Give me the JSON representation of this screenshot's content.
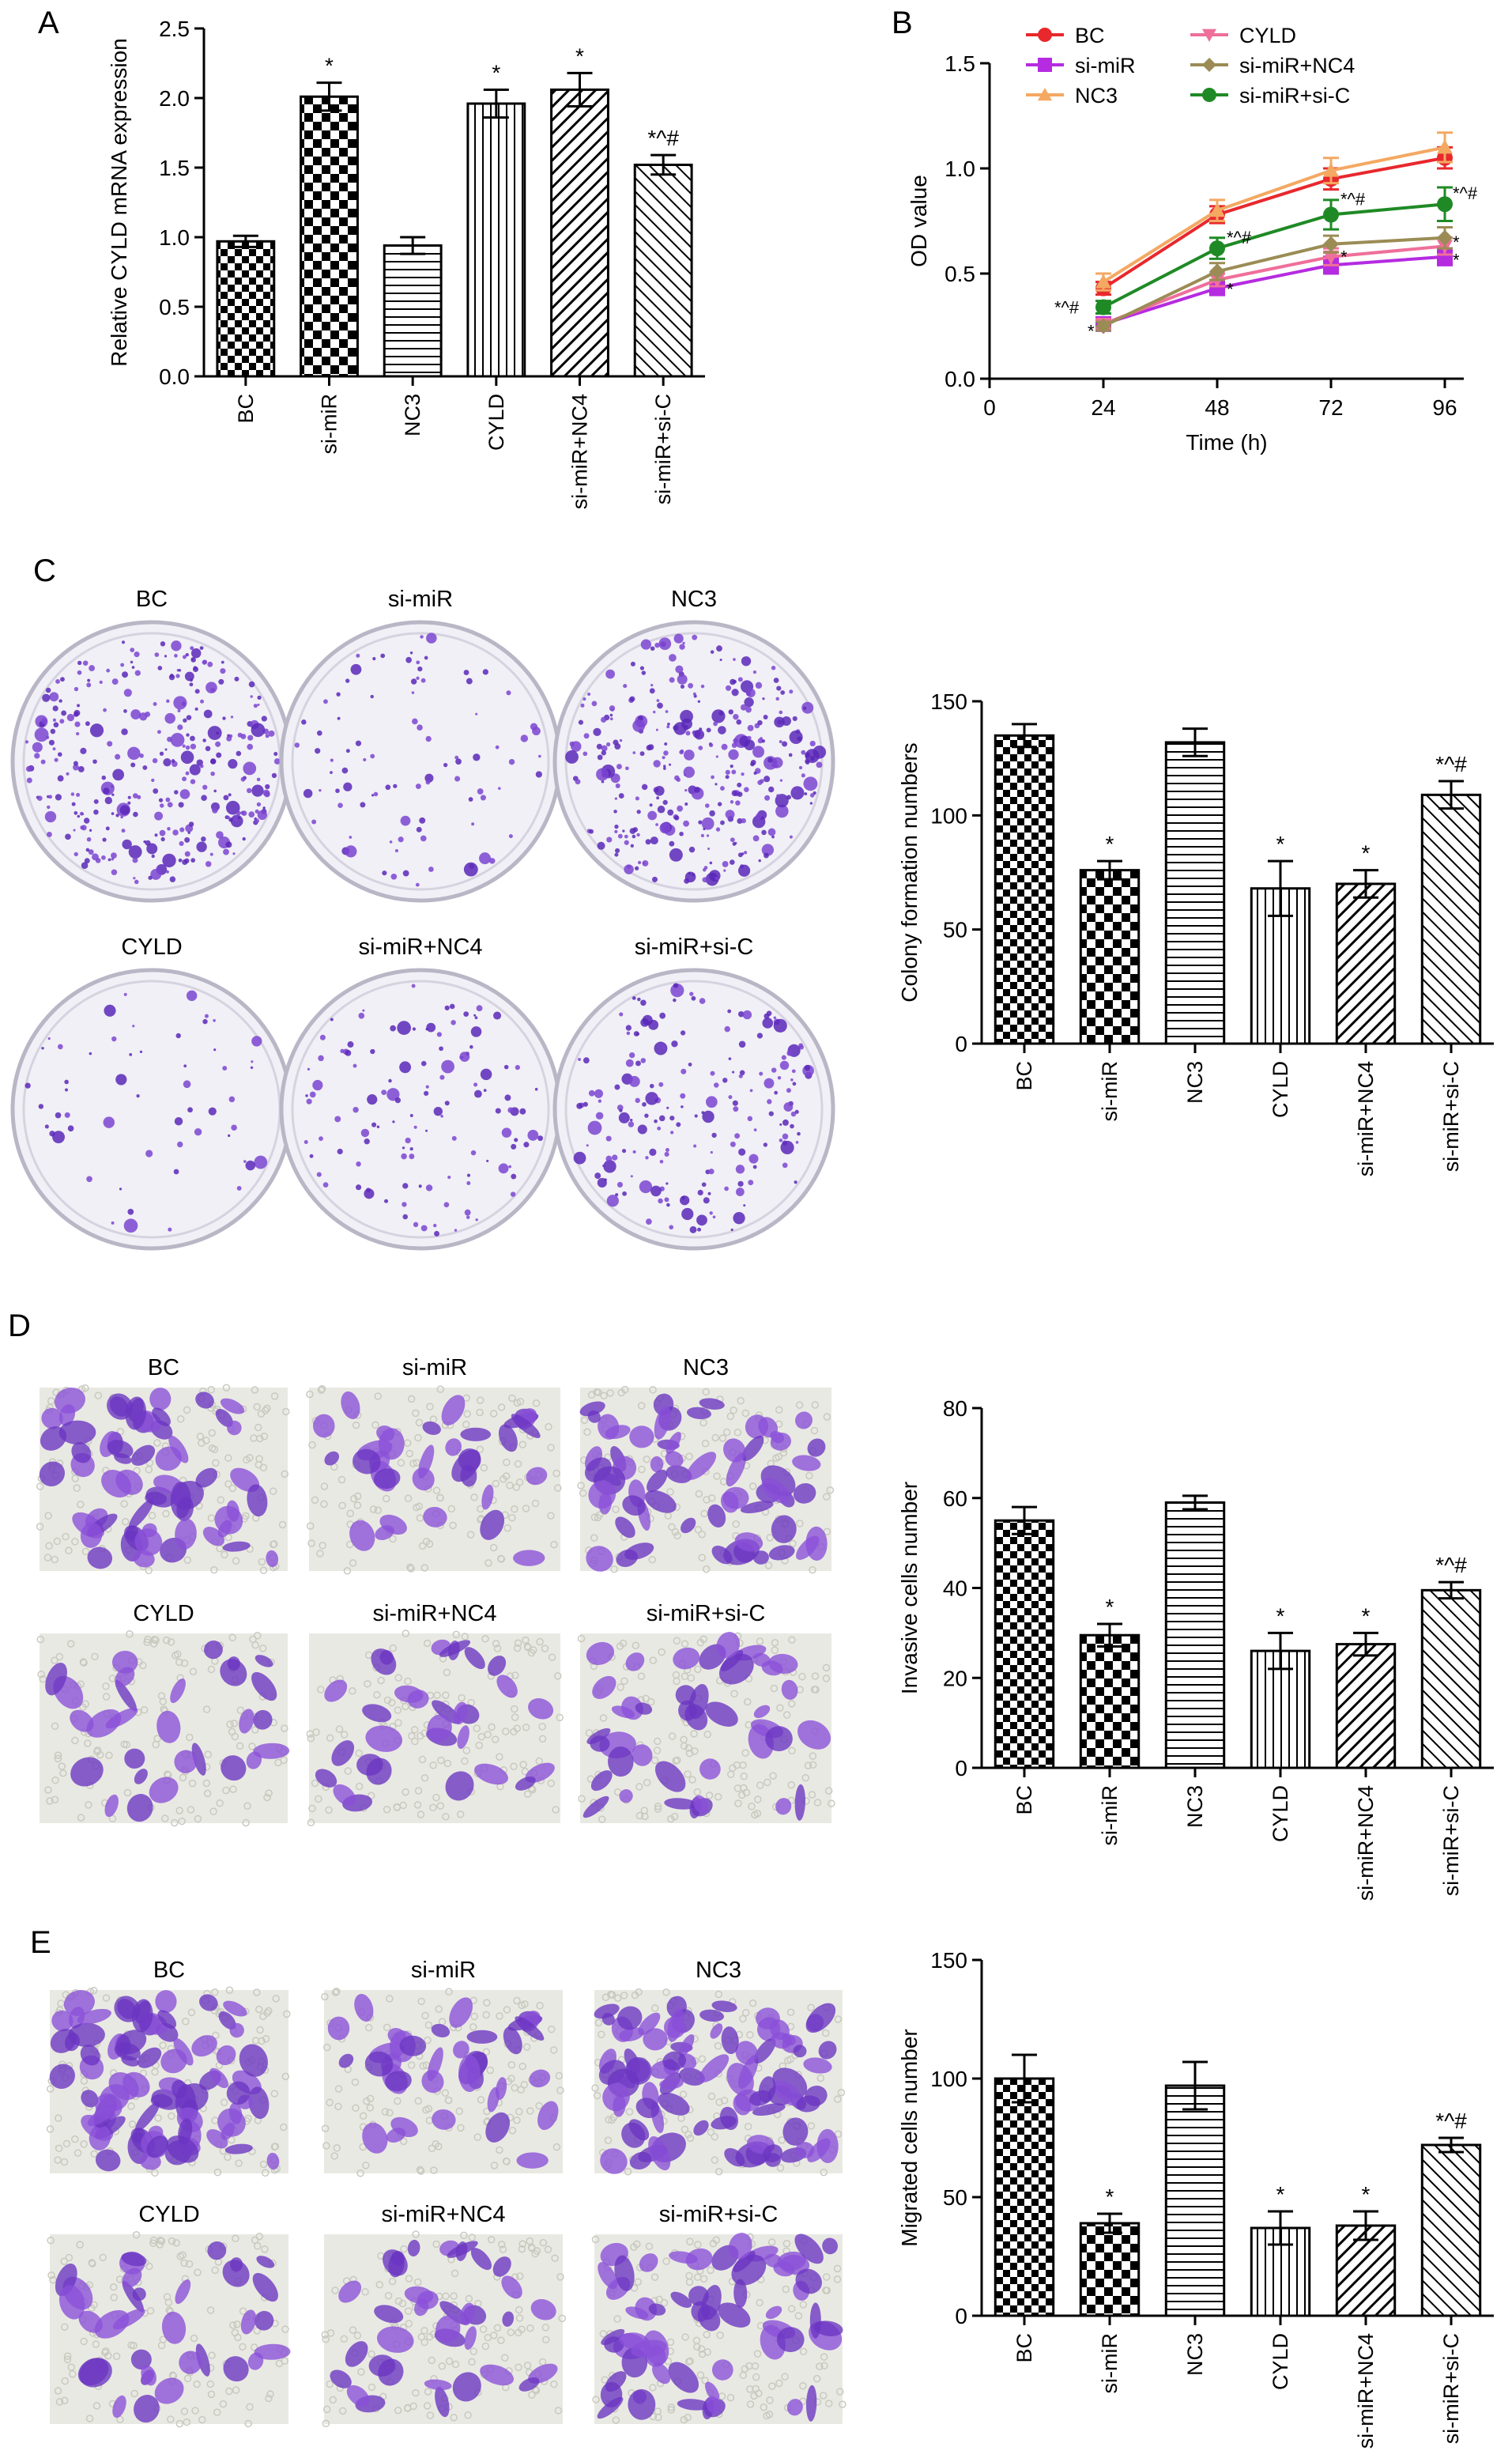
{
  "chart_data": [
    {
      "panel": "A",
      "type": "bar",
      "categories": [
        "BC",
        "si-miR",
        "NC3",
        "CYLD",
        "si-miR+NC4",
        "si-miR+si-C"
      ],
      "values": [
        0.97,
        2.01,
        0.94,
        1.96,
        2.06,
        1.52
      ],
      "errors": [
        0.04,
        0.1,
        0.06,
        0.1,
        0.12,
        0.07
      ],
      "significance": [
        "",
        "*",
        "",
        "*",
        "*",
        "*^#"
      ],
      "xlabel": "",
      "ylabel": "Relative CYLD mRNA expression",
      "ylim": [
        0,
        2.5
      ],
      "yticks": [
        "0.0",
        "0.5",
        "1.0",
        "1.5",
        "2.0",
        "2.5"
      ],
      "grid": false,
      "patterns": [
        "checker",
        "checker-bold",
        "horizontal",
        "vertical",
        "diagonal",
        "diagonal-reverse"
      ]
    },
    {
      "panel": "B",
      "type": "line",
      "x": [
        24,
        48,
        72,
        96
      ],
      "xlabel": "Time (h)",
      "ylabel": "OD value",
      "xlim": [
        0,
        100
      ],
      "ylim": [
        0,
        1.5
      ],
      "xticks": [
        "0",
        "24",
        "48",
        "72",
        "96"
      ],
      "yticks": [
        "0.0",
        "0.5",
        "1.0",
        "1.5"
      ],
      "legend_position": "top",
      "series": [
        {
          "name": "BC",
          "color": "#e8282d",
          "marker": "circle",
          "values": [
            0.43,
            0.78,
            0.95,
            1.05
          ],
          "errors": [
            0.03,
            0.04,
            0.05,
            0.05
          ]
        },
        {
          "name": "si-miR",
          "color": "#b52be0",
          "marker": "square",
          "values": [
            0.26,
            0.43,
            0.54,
            0.58
          ],
          "errors": [
            0.02,
            0.03,
            0.04,
            0.04
          ]
        },
        {
          "name": "NC3",
          "color": "#f4a862",
          "marker": "triangle-up",
          "values": [
            0.46,
            0.8,
            0.99,
            1.1
          ],
          "errors": [
            0.04,
            0.05,
            0.06,
            0.07
          ]
        },
        {
          "name": "CYLD",
          "color": "#ef6f9a",
          "marker": "triangle-down",
          "values": [
            0.26,
            0.47,
            0.58,
            0.63
          ],
          "errors": [
            0.02,
            0.03,
            0.04,
            0.04
          ]
        },
        {
          "name": "si-miR+NC4",
          "color": "#9b8c55",
          "marker": "diamond",
          "values": [
            0.25,
            0.51,
            0.64,
            0.67
          ],
          "errors": [
            0.02,
            0.04,
            0.04,
            0.05
          ]
        },
        {
          "name": "si-miR+si-C",
          "color": "#1f8a25",
          "marker": "circle",
          "values": [
            0.34,
            0.62,
            0.78,
            0.83
          ],
          "errors": [
            0.03,
            0.05,
            0.07,
            0.08
          ]
        }
      ],
      "annotations": [
        "*^#",
        "*",
        "*^#",
        "*",
        "*^#",
        "*",
        "*^#",
        "*",
        "*"
      ]
    },
    {
      "panel": "C",
      "type": "bar",
      "categories": [
        "BC",
        "si-miR",
        "NC3",
        "CYLD",
        "si-miR+NC4",
        "si-miR+si-C"
      ],
      "values": [
        135,
        76,
        132,
        68,
        70,
        109
      ],
      "errors": [
        5,
        4,
        6,
        12,
        6,
        6
      ],
      "significance": [
        "",
        "*",
        "",
        "*",
        "*",
        "*^#"
      ],
      "xlabel": "",
      "ylabel": "Colony formation numbers",
      "ylim": [
        0,
        150
      ],
      "yticks": [
        "0",
        "50",
        "100",
        "150"
      ],
      "grid": false
    },
    {
      "panel": "D",
      "type": "bar",
      "categories": [
        "BC",
        "si-miR",
        "NC3",
        "CYLD",
        "si-miR+NC4",
        "si-miR+si-C"
      ],
      "values": [
        55,
        29.5,
        59,
        26,
        27.5,
        39.5
      ],
      "errors": [
        3,
        2.5,
        1.5,
        4,
        2.5,
        1.8
      ],
      "significance": [
        "",
        "*",
        "",
        "*",
        "*",
        "*^#"
      ],
      "xlabel": "",
      "ylabel": "Invasive cells number",
      "ylim": [
        0,
        80
      ],
      "yticks": [
        "0",
        "20",
        "40",
        "60",
        "80"
      ],
      "grid": false
    },
    {
      "panel": "E",
      "type": "bar",
      "categories": [
        "BC",
        "si-miR",
        "NC3",
        "CYLD",
        "si-miR+NC4",
        "si-miR+si-C"
      ],
      "values": [
        100,
        39,
        97,
        37,
        38,
        72
      ],
      "errors": [
        10,
        4,
        10,
        7,
        6,
        3
      ],
      "significance": [
        "",
        "*",
        "",
        "*",
        "*",
        "*^#"
      ],
      "xlabel": "",
      "ylabel": "Migrated cells number",
      "ylim": [
        0,
        150
      ],
      "yticks": [
        "0",
        "50",
        "100",
        "150"
      ],
      "grid": false
    }
  ],
  "panel_letters": [
    "A",
    "B",
    "C",
    "D",
    "E"
  ],
  "image_panels": {
    "C": {
      "labels": [
        "BC",
        "si-miR",
        "NC3",
        "CYLD",
        "si-miR+NC4",
        "si-miR+si-C"
      ],
      "kind": "colony plate"
    },
    "D": {
      "labels": [
        "BC",
        "si-miR",
        "NC3",
        "CYLD",
        "si-miR+NC4",
        "si-miR+si-C"
      ],
      "kind": "transwell invasion"
    },
    "E": {
      "labels": [
        "BC",
        "si-miR",
        "NC3",
        "CYLD",
        "si-miR+NC4",
        "si-miR+si-C"
      ],
      "kind": "transwell migration"
    }
  },
  "colors": {
    "stain": "#7a3fc8",
    "stain_dark": "#4a1fa0",
    "plate_bg": "#f4f3f8",
    "field_bg": "#e8e8e2"
  }
}
